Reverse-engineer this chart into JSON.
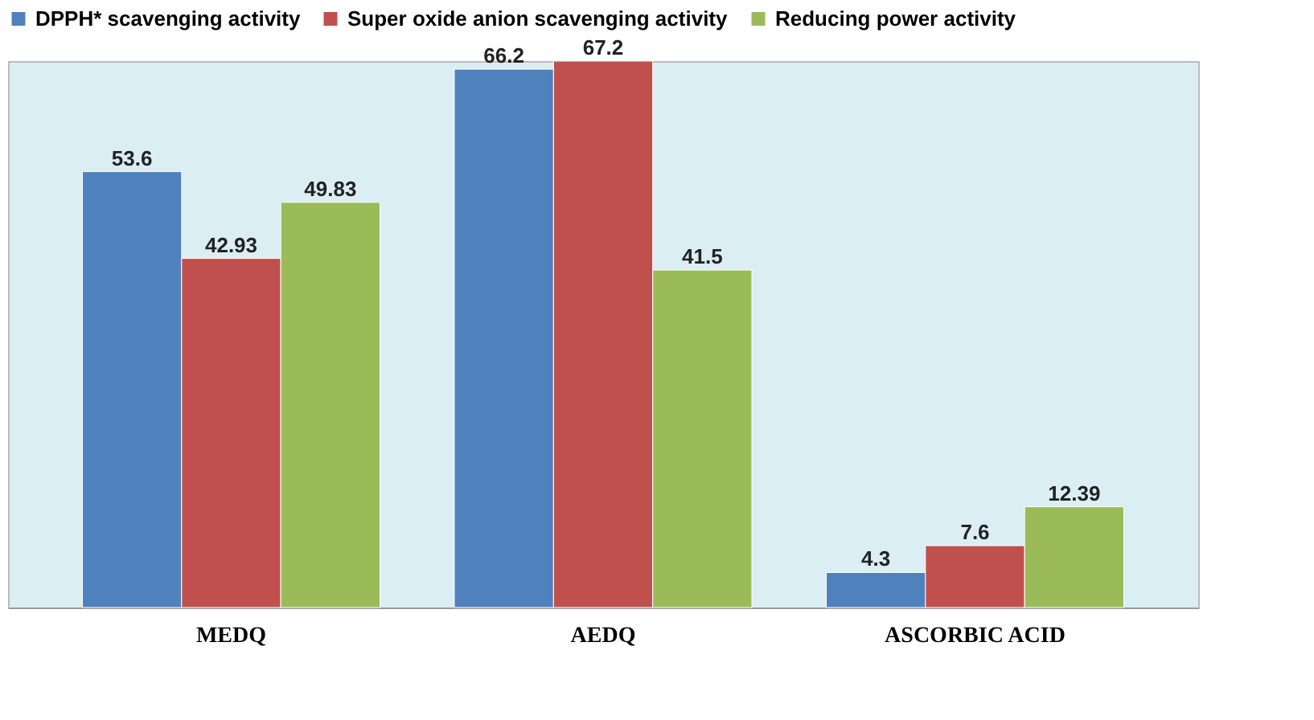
{
  "chart_data": {
    "type": "bar",
    "categories": [
      "MEDQ",
      "AEDQ",
      "ASCORBIC ACID"
    ],
    "series": [
      {
        "name": "DPPH* scavenging activity",
        "color": "#4f81bd",
        "values": [
          53.6,
          66.2,
          4.3
        ]
      },
      {
        "name": "Super oxide anion scavenging activity",
        "color": "#c0504d",
        "values": [
          42.93,
          67.2,
          7.6
        ]
      },
      {
        "name": "Reducing power activity",
        "color": "#9bbb59",
        "values": [
          49.83,
          41.5,
          12.39
        ]
      }
    ],
    "data_labels": true,
    "legend": "top",
    "grid": false
  }
}
